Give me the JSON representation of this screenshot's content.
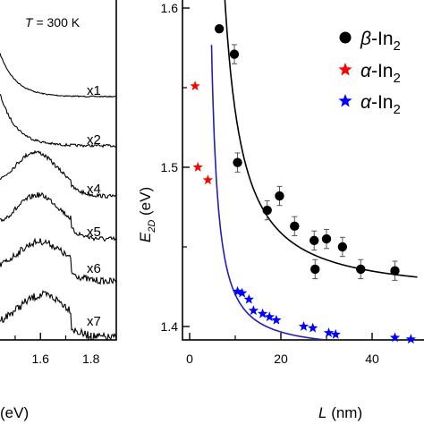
{
  "chart_data": [
    {
      "type": "line",
      "panel": "left",
      "annotation": "T = 300 K",
      "annotation_parts": {
        "symbol": "T",
        "rest": " = 300 K"
      },
      "xlabel": "(eV)",
      "xtick_labels": [
        "1.6",
        "1.8"
      ],
      "xticks": [
        1.6,
        1.8
      ],
      "xlim": [
        1.44,
        1.9
      ],
      "series": [
        {
          "label": "x1",
          "trace": "trace-1",
          "onset": 1.54,
          "amplitude": 1.0,
          "noise": 0.0
        },
        {
          "label": "x2",
          "trace": "trace-2",
          "onset": 1.52,
          "amplitude": 1.0,
          "noise": 0.25
        },
        {
          "label": "x4",
          "trace": "trace-3",
          "onset": 1.48,
          "amplitude": 1.0,
          "noise": 0.5
        },
        {
          "label": "x5",
          "trace": "trace-4",
          "onset": 1.46,
          "amplitude": 1.0,
          "noise": 0.75
        },
        {
          "label": "x6",
          "trace": "trace-5",
          "onset": 1.44,
          "amplitude": 1.0,
          "noise": 1.0
        },
        {
          "label": "x7",
          "trace": "trace-6",
          "onset": 1.42,
          "amplitude": 1.0,
          "noise": 1.25
        }
      ]
    },
    {
      "type": "scatter",
      "panel": "right",
      "xlabel": "L (nm)",
      "xlabel_parts": {
        "symbol": "L",
        "rest": " (nm)"
      },
      "ylabel": "E2D (eV)",
      "ylabel_parts": {
        "symbol": "E",
        "sub": "2D",
        "rest": " (eV)"
      },
      "xlim": [
        -1,
        50
      ],
      "ylim": [
        1.38,
        1.6
      ],
      "xticks": [
        0,
        20,
        40
      ],
      "xtick_labels": [
        "0",
        "20",
        "40"
      ],
      "yticks": [
        1.4,
        1.5,
        1.6
      ],
      "ytick_labels": [
        "1.4",
        "1.5",
        "1.6"
      ],
      "legend_position": "top-right",
      "series": [
        {
          "name": "β-In2",
          "legend_parts": {
            "greek": "β",
            "rest": "-In",
            "sub": "2"
          },
          "marker": "circle",
          "color": "#000000",
          "points": [
            {
              "x": 6.5,
              "y": 1.587,
              "err": 0.0
            },
            {
              "x": 9.8,
              "y": 1.571,
              "err": 0.006
            },
            {
              "x": 10.5,
              "y": 1.503,
              "err": 0.006
            },
            {
              "x": 17.0,
              "y": 1.473,
              "err": 0.006
            },
            {
              "x": 19.7,
              "y": 1.482,
              "err": 0.006
            },
            {
              "x": 23.0,
              "y": 1.463,
              "err": 0.006
            },
            {
              "x": 27.3,
              "y": 1.454,
              "err": 0.006
            },
            {
              "x": 30.0,
              "y": 1.455,
              "err": 0.006
            },
            {
              "x": 33.5,
              "y": 1.45,
              "err": 0.006
            },
            {
              "x": 27.5,
              "y": 1.436,
              "err": 0.006
            },
            {
              "x": 37.5,
              "y": 1.436,
              "err": 0.006
            },
            {
              "x": 45.0,
              "y": 1.435,
              "err": 0.006
            }
          ]
        },
        {
          "name": "α-In2",
          "legend_parts": {
            "greek": "α",
            "rest": "-In",
            "sub": "2"
          },
          "marker": "star",
          "color": "#ff0000",
          "points": [
            {
              "x": 1.2,
              "y": 1.551
            },
            {
              "x": 1.8,
              "y": 1.5
            },
            {
              "x": 4.0,
              "y": 1.492
            }
          ]
        },
        {
          "name": "α-In2",
          "legend_parts": {
            "greek": "α",
            "rest": "-In",
            "sub": "2"
          },
          "marker": "star",
          "color": "#0000ff",
          "points": [
            {
              "x": 10.5,
              "y": 1.422
            },
            {
              "x": 11.5,
              "y": 1.421
            },
            {
              "x": 13.0,
              "y": 1.417
            },
            {
              "x": 14.0,
              "y": 1.41
            },
            {
              "x": 16.0,
              "y": 1.408
            },
            {
              "x": 17.5,
              "y": 1.406
            },
            {
              "x": 19.0,
              "y": 1.404
            },
            {
              "x": 25.0,
              "y": 1.4
            },
            {
              "x": 27.0,
              "y": 1.399
            },
            {
              "x": 30.5,
              "y": 1.396
            },
            {
              "x": 32.0,
              "y": 1.395
            },
            {
              "x": 45.0,
              "y": 1.393
            },
            {
              "x": 48.5,
              "y": 1.392
            }
          ]
        }
      ],
      "fits": [
        {
          "series": "black",
          "color": "#000000",
          "A": 1.42,
          "B": 1.36,
          "x0": 4.0
        },
        {
          "series": "blue",
          "color": "#1f1fb8",
          "A": 1.385,
          "B": 0.4,
          "x0": 4.2
        }
      ]
    }
  ]
}
